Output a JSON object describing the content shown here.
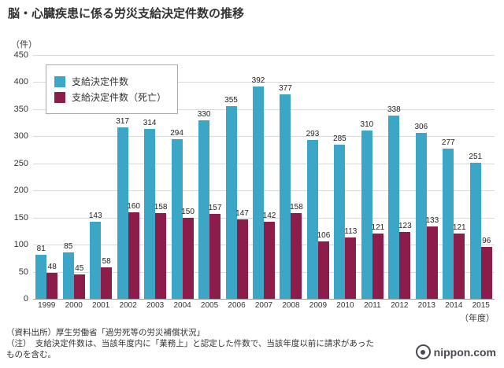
{
  "title": "脳・心臓疾患に係る労災支給決定件数の推移",
  "y_unit_label": "（件）",
  "x_unit_label": "（年度）",
  "legend": [
    {
      "label": "支給決定件数",
      "color": "#3ba6c6"
    },
    {
      "label": "支給決定件数（死亡）",
      "color": "#8c1d4b"
    }
  ],
  "chart_data": {
    "type": "bar",
    "title": "脳・心臓疾患に係る労災支給決定件数の推移",
    "categories": [
      "1999",
      "2000",
      "2001",
      "2002",
      "2003",
      "2004",
      "2005",
      "2006",
      "2007",
      "2008",
      "2009",
      "2010",
      "2011",
      "2012",
      "2013",
      "2014",
      "2015"
    ],
    "series": [
      {
        "name": "支給決定件数",
        "color": "#3ba6c6",
        "values": [
          81,
          85,
          143,
          317,
          314,
          294,
          330,
          355,
          392,
          377,
          293,
          285,
          310,
          338,
          306,
          277,
          251
        ]
      },
      {
        "name": "支給決定件数（死亡）",
        "color": "#8c1d4b",
        "values": [
          48,
          45,
          58,
          160,
          158,
          150,
          157,
          147,
          142,
          158,
          106,
          113,
          121,
          123,
          133,
          121,
          96
        ]
      }
    ],
    "xlabel": "年度",
    "ylabel": "件",
    "ylim": [
      0,
      450
    ],
    "ytick_interval": 50,
    "grid": true,
    "legend_position": "top-left"
  },
  "footnotes": {
    "source": "（資料出所）厚生労働省「過労死等の労災補償状況」",
    "note": "（注）　支給決定件数は、当該年度内に「業務上」と認定した件数で、当該年度以前に請求があったものを含む。"
  },
  "logo": {
    "text": "nippon.com"
  }
}
